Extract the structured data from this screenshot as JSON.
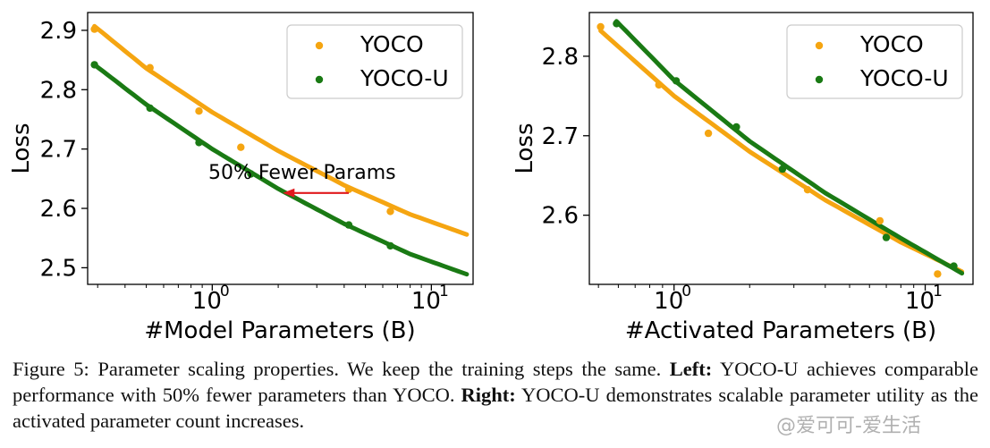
{
  "chart_data": [
    {
      "type": "scatter",
      "xlabel": "#Model Parameters (B)",
      "ylabel": "Loss",
      "xscale": "log",
      "xlim": [
        0.27,
        15.5
      ],
      "ylim": [
        2.472,
        2.93
      ],
      "yticks": [
        2.5,
        2.6,
        2.7,
        2.8,
        2.9
      ],
      "ytick_labels": [
        "2.5",
        "2.6",
        "2.7",
        "2.8",
        "2.9"
      ],
      "xtick_labels": [
        "10",
        "0",
        "10",
        "1"
      ],
      "legend_position": "top-right",
      "series": [
        {
          "name": "YOCO",
          "color": "#f5a511",
          "x": [
            0.29,
            0.52,
            0.87,
            1.35,
            4.2,
            6.5
          ],
          "y": [
            2.902,
            2.837,
            2.764,
            2.703,
            2.632,
            2.595
          ],
          "fit_x": [
            0.29,
            0.5,
            1.0,
            2.0,
            4.0,
            8.0,
            14.5
          ],
          "fit_y": [
            2.907,
            2.836,
            2.762,
            2.697,
            2.639,
            2.59,
            2.556
          ]
        },
        {
          "name": "YOCO-U",
          "color": "#1a7a14",
          "x": [
            0.29,
            0.52,
            0.87,
            1.5,
            4.2,
            6.5
          ],
          "y": [
            2.842,
            2.769,
            2.711,
            2.658,
            2.572,
            2.537
          ],
          "fit_x": [
            0.29,
            0.5,
            1.0,
            2.0,
            4.0,
            8.0,
            14.5
          ],
          "fit_y": [
            2.842,
            2.775,
            2.7,
            2.633,
            2.574,
            2.523,
            2.489
          ]
        }
      ],
      "annotation": {
        "text": "50% Fewer Params",
        "arrow_from": [
          4.2,
          2.626
        ],
        "arrow_to": [
          2.1,
          2.626
        ],
        "arrow_color": "#e0191d"
      }
    },
    {
      "type": "scatter",
      "xlabel": "#Activated Parameters (B)",
      "ylabel": "Loss",
      "xscale": "log",
      "xlim": [
        0.46,
        15.5
      ],
      "ylim": [
        2.513,
        2.855
      ],
      "yticks": [
        2.6,
        2.7,
        2.8
      ],
      "ytick_labels": [
        "2.6",
        "2.7",
        "2.8"
      ],
      "xtick_labels": [
        "10",
        "0",
        "10",
        "1"
      ],
      "legend_position": "top-right",
      "series": [
        {
          "name": "YOCO",
          "color": "#f5a511",
          "x": [
            0.51,
            0.87,
            1.37,
            3.4,
            6.6,
            11.2
          ],
          "y": [
            2.837,
            2.764,
            2.703,
            2.632,
            2.593,
            2.526
          ],
          "fit_x": [
            0.51,
            1.0,
            2.0,
            4.0,
            8.0,
            14.0
          ],
          "fit_y": [
            2.832,
            2.75,
            2.68,
            2.619,
            2.566,
            2.529
          ]
        },
        {
          "name": "YOCO-U",
          "color": "#1a7a14",
          "x": [
            0.59,
            1.02,
            1.77,
            2.7,
            7.0,
            13.0
          ],
          "y": [
            2.841,
            2.769,
            2.711,
            2.658,
            2.572,
            2.536
          ],
          "fit_x": [
            0.59,
            1.0,
            2.0,
            4.0,
            8.0,
            14.0
          ],
          "fit_y": [
            2.844,
            2.77,
            2.693,
            2.628,
            2.571,
            2.527
          ]
        }
      ]
    }
  ],
  "caption": {
    "figure_label": "Figure 5:",
    "sentence_1": " Parameter scaling properties. We keep the training steps the same. ",
    "left_label": "Left:",
    "left_text": " YOCO-U achieves comparable performance with 50% fewer parameters than YOCO. ",
    "right_label": "Right:",
    "right_text": " YOCO-U demonstrates scalable parameter utility as the activated parameter count increases."
  },
  "watermark": "@爱可可-爱生活"
}
